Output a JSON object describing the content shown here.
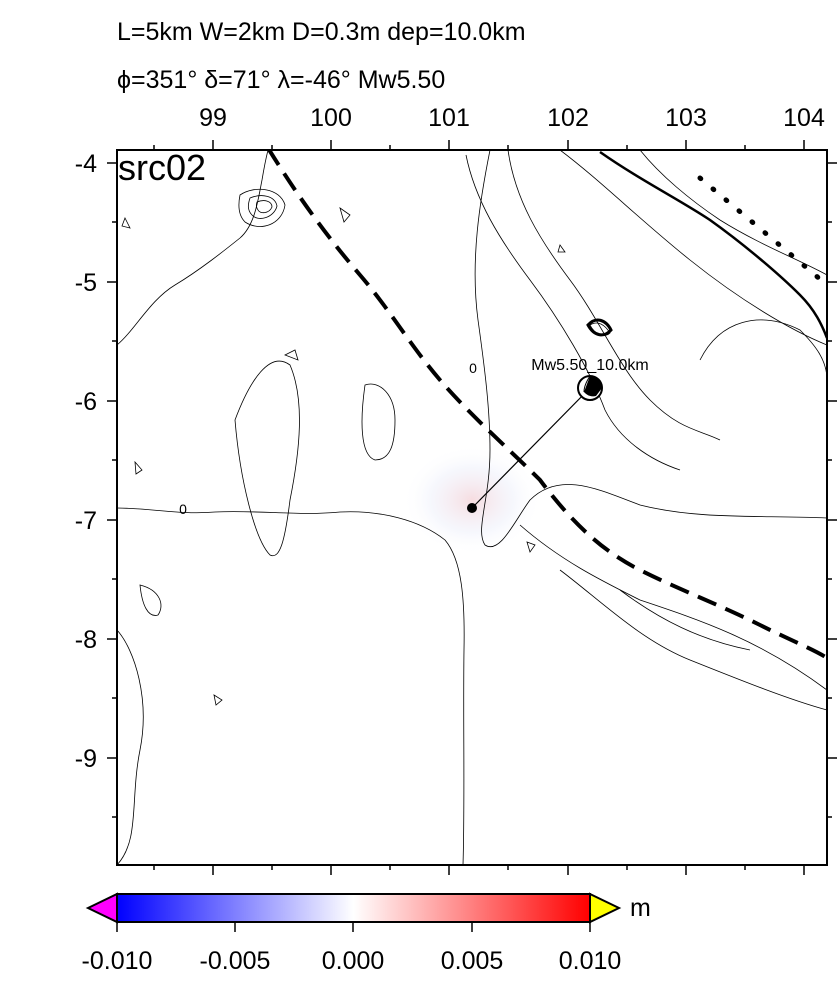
{
  "header": {
    "line1": "L=5km W=2km D=0.3m dep=10.0km",
    "line2": "ϕ=351° δ=71° λ=-46° Mw5.50"
  },
  "map": {
    "panel_label": "src02",
    "event_label": "Mw5.50_10.0km",
    "contour_zero_label": "0",
    "longitude_ticks": [
      "99",
      "100",
      "101",
      "102",
      "103",
      "104"
    ],
    "latitude_ticks": [
      "-4",
      "-5",
      "-6",
      "-7",
      "-8",
      "-9"
    ]
  },
  "colorbar": {
    "unit": "m",
    "tick_labels": [
      "-0.010",
      "-0.005",
      "0.000",
      "0.005",
      "0.010"
    ],
    "low_color": "#0000ff",
    "mid_color": "#ffffff",
    "high_color": "#ff0000",
    "under_color": "#ff00ff",
    "over_color": "#ffff00"
  }
}
